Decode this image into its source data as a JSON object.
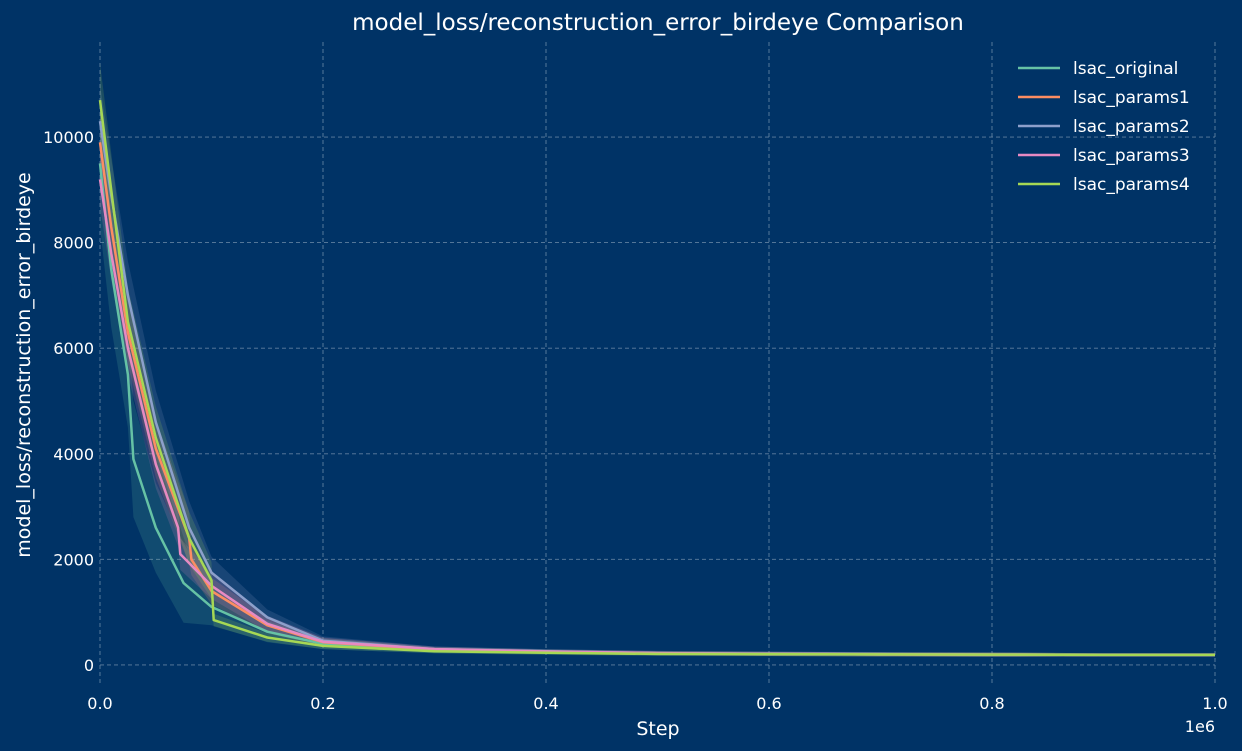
{
  "chart_data": {
    "type": "line",
    "title": "model_loss/reconstruction_error_birdeye Comparison",
    "xlabel": "Step",
    "ylabel": "model_loss/reconstruction_error_birdeye",
    "x_multiplier_label": "1e6",
    "xlim": [
      0,
      1000000
    ],
    "ylim": [
      -380,
      11800
    ],
    "x_ticks": [
      0,
      200000,
      400000,
      600000,
      800000,
      1000000
    ],
    "x_tick_labels": [
      "0.0",
      "0.2",
      "0.4",
      "0.6",
      "0.8",
      "1.0"
    ],
    "y_ticks": [
      0,
      2000,
      4000,
      6000,
      8000,
      10000
    ],
    "y_tick_labels": [
      "0",
      "2000",
      "4000",
      "6000",
      "8000",
      "10000"
    ],
    "grid": true,
    "legend_position": "top-right",
    "background": "#003366",
    "series": [
      {
        "name": "lsac_original",
        "color": "#66c2a5",
        "x": [
          0,
          10000,
          25000,
          30000,
          50000,
          75000,
          100000,
          150000,
          200000,
          300000,
          400000,
          500000,
          600000,
          700000,
          800000,
          900000,
          1000000
        ],
        "y": [
          9500,
          7500,
          5500,
          3900,
          2600,
          1550,
          1100,
          630,
          400,
          280,
          250,
          220,
          210,
          200,
          195,
          190,
          190
        ],
        "band": [
          1200,
          1100,
          1000,
          1100,
          850,
          750,
          350,
          200,
          100,
          60,
          50,
          40,
          40,
          40,
          40,
          30,
          30
        ]
      },
      {
        "name": "lsac_params1",
        "color": "#fc8d62",
        "x": [
          0,
          10000,
          25000,
          50000,
          80000,
          82000,
          100000,
          150000,
          200000,
          300000,
          400000,
          500000,
          600000,
          700000,
          800000,
          900000,
          1000000
        ],
        "y": [
          9900,
          8300,
          6300,
          4100,
          2400,
          2000,
          1400,
          750,
          430,
          290,
          250,
          220,
          210,
          200,
          195,
          190,
          190
        ],
        "band": [
          600,
          600,
          600,
          550,
          500,
          300,
          250,
          150,
          80,
          50,
          40,
          40,
          40,
          40,
          40,
          30,
          30
        ]
      },
      {
        "name": "lsac_params2",
        "color": "#8da0cb",
        "x": [
          0,
          10000,
          25000,
          50000,
          80000,
          100000,
          150000,
          200000,
          300000,
          400000,
          500000,
          600000,
          700000,
          800000,
          900000,
          1000000
        ],
        "y": [
          10300,
          8900,
          7000,
          4600,
          2600,
          1750,
          900,
          460,
          300,
          260,
          225,
          215,
          205,
          195,
          190,
          190
        ],
        "band": [
          700,
          700,
          650,
          600,
          500,
          300,
          150,
          80,
          50,
          40,
          40,
          40,
          40,
          40,
          30,
          30
        ]
      },
      {
        "name": "lsac_params3",
        "color": "#e78ac3",
        "x": [
          0,
          10000,
          25000,
          50000,
          70000,
          72000,
          100000,
          150000,
          200000,
          300000,
          400000,
          500000,
          600000,
          700000,
          800000,
          900000,
          1000000
        ],
        "y": [
          9200,
          7800,
          6000,
          3800,
          2600,
          2100,
          1500,
          780,
          440,
          300,
          255,
          225,
          210,
          200,
          195,
          190,
          190
        ],
        "band": [
          500,
          500,
          500,
          450,
          350,
          300,
          250,
          150,
          80,
          50,
          40,
          40,
          40,
          40,
          40,
          30,
          30
        ]
      },
      {
        "name": "lsac_params4",
        "color": "#a6d854",
        "x": [
          0,
          10000,
          25000,
          50000,
          80000,
          100000,
          102000,
          150000,
          200000,
          300000,
          400000,
          500000,
          600000,
          700000,
          800000,
          900000,
          1000000
        ],
        "y": [
          10700,
          9000,
          6500,
          4300,
          2400,
          1600,
          850,
          520,
          360,
          260,
          230,
          210,
          205,
          200,
          195,
          190,
          190
        ],
        "band": [
          700,
          700,
          650,
          600,
          500,
          350,
          120,
          80,
          60,
          40,
          40,
          40,
          40,
          40,
          40,
          30,
          30
        ]
      }
    ]
  }
}
